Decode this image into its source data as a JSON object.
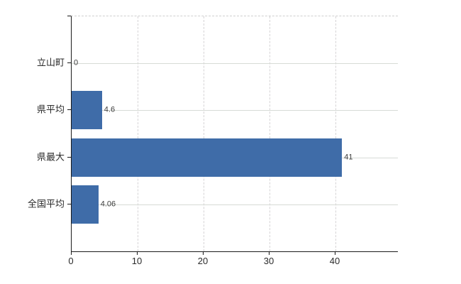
{
  "chart_data": {
    "type": "bar",
    "orientation": "horizontal",
    "title": "",
    "xlabel": "",
    "ylabel": "",
    "categories": [
      "立山町",
      "県平均",
      "県最大",
      "全国平均"
    ],
    "values": [
      0,
      4.6,
      41,
      4.06
    ],
    "value_labels": [
      "0",
      "4.6",
      "41",
      "4.06"
    ],
    "x_ticks": [
      0,
      10,
      20,
      30,
      40
    ],
    "x_tick_labels": [
      "0",
      "10",
      "20",
      "30",
      "40"
    ],
    "xlim": [
      0,
      49.5
    ],
    "grid": true,
    "legend": "none",
    "bar_color": "#3f6ca8",
    "axis_color": "#1a1a1a",
    "gridline_color": "#d7dbd6"
  }
}
